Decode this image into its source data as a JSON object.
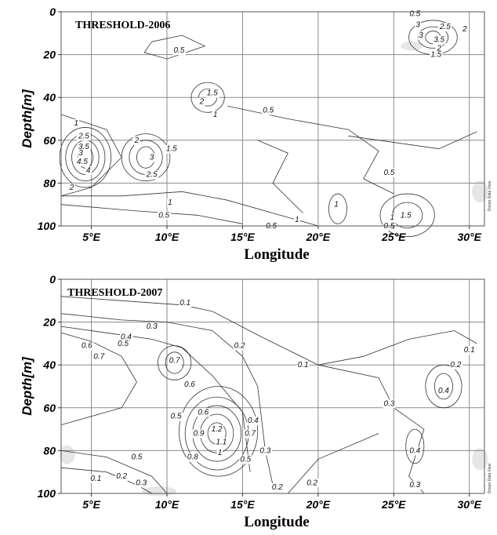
{
  "chart_data": [
    {
      "type": "contour",
      "title": "THRESHOLD-2006",
      "xlabel": "Longitude",
      "ylabel": "Depth[m]",
      "x_ticks": [
        "5°E",
        "10°E",
        "15°E",
        "20°E",
        "25°E",
        "30°E"
      ],
      "x_tick_values": [
        5,
        10,
        15,
        20,
        25,
        30
      ],
      "y_ticks": [
        "0",
        "20",
        "40",
        "60",
        "80",
        "100"
      ],
      "y_tick_values": [
        0,
        20,
        40,
        60,
        80,
        100
      ],
      "xlim": [
        3,
        31
      ],
      "ylim": [
        100,
        0
      ],
      "grid": true,
      "credit": "Ocean Data View",
      "contour_labels": [
        {
          "text": "0.5",
          "lon": 26.4,
          "depth": 1
        },
        {
          "text": "3",
          "lon": 26.6,
          "depth": 6
        },
        {
          "text": "2.5",
          "lon": 28.4,
          "depth": 7
        },
        {
          "text": "2",
          "lon": 29.7,
          "depth": 8
        },
        {
          "text": "3",
          "lon": 26.8,
          "depth": 11
        },
        {
          "text": "3.5",
          "lon": 28.0,
          "depth": 13
        },
        {
          "text": "2",
          "lon": 28.0,
          "depth": 17
        },
        {
          "text": "1.5",
          "lon": 27.8,
          "depth": 20
        },
        {
          "text": "0.5",
          "lon": 10.8,
          "depth": 18
        },
        {
          "text": "1.5",
          "lon": 13.0,
          "depth": 38
        },
        {
          "text": "2",
          "lon": 12.3,
          "depth": 42
        },
        {
          "text": "1",
          "lon": 13.2,
          "depth": 48
        },
        {
          "text": "0.5",
          "lon": 16.7,
          "depth": 46
        },
        {
          "text": "1",
          "lon": 4.0,
          "depth": 52
        },
        {
          "text": "2.5",
          "lon": 4.5,
          "depth": 58
        },
        {
          "text": "2",
          "lon": 8.0,
          "depth": 60
        },
        {
          "text": "3.5",
          "lon": 4.5,
          "depth": 63
        },
        {
          "text": "3",
          "lon": 4.3,
          "depth": 66
        },
        {
          "text": "4.5",
          "lon": 4.4,
          "depth": 70
        },
        {
          "text": "4",
          "lon": 4.8,
          "depth": 74
        },
        {
          "text": "3",
          "lon": 9.0,
          "depth": 68
        },
        {
          "text": "1.5",
          "lon": 10.3,
          "depth": 64
        },
        {
          "text": "2.5",
          "lon": 9.0,
          "depth": 76
        },
        {
          "text": "2",
          "lon": 3.7,
          "depth": 82
        },
        {
          "text": "0.5",
          "lon": 24.7,
          "depth": 75
        },
        {
          "text": "1",
          "lon": 10.2,
          "depth": 89
        },
        {
          "text": "0.5",
          "lon": 9.8,
          "depth": 95
        },
        {
          "text": "1",
          "lon": 18.6,
          "depth": 97
        },
        {
          "text": "0.5",
          "lon": 16.9,
          "depth": 100
        },
        {
          "text": "1",
          "lon": 21.2,
          "depth": 90
        },
        {
          "text": "1",
          "lon": 24.9,
          "depth": 96
        },
        {
          "text": "1.5",
          "lon": 25.8,
          "depth": 95
        },
        {
          "text": "0.5",
          "lon": 24.7,
          "depth": 100
        }
      ]
    },
    {
      "type": "contour",
      "title": "THRESHOLD-2007",
      "xlabel": "Longitude",
      "ylabel": "Depth[m]",
      "x_ticks": [
        "5°E",
        "10°E",
        "15°E",
        "20°E",
        "25°E",
        "30°E"
      ],
      "x_tick_values": [
        5,
        10,
        15,
        20,
        25,
        30
      ],
      "y_ticks": [
        "0",
        "20",
        "40",
        "60",
        "80",
        "100"
      ],
      "y_tick_values": [
        0,
        20,
        40,
        60,
        80,
        100
      ],
      "xlim": [
        3,
        31
      ],
      "ylim": [
        100,
        0
      ],
      "grid": true,
      "credit": "Ocean Data View",
      "contour_labels": [
        {
          "text": "0.1",
          "lon": 11.2,
          "depth": 11
        },
        {
          "text": "0.3",
          "lon": 9.0,
          "depth": 22
        },
        {
          "text": "0.4",
          "lon": 7.3,
          "depth": 27
        },
        {
          "text": "0.5",
          "lon": 7.1,
          "depth": 30
        },
        {
          "text": "0.6",
          "lon": 4.7,
          "depth": 31
        },
        {
          "text": "0.7",
          "lon": 5.5,
          "depth": 36
        },
        {
          "text": "0.2",
          "lon": 14.8,
          "depth": 31
        },
        {
          "text": "0.1",
          "lon": 19.0,
          "depth": 40
        },
        {
          "text": "0.7",
          "lon": 10.5,
          "depth": 38
        },
        {
          "text": "0.6",
          "lon": 11.5,
          "depth": 49
        },
        {
          "text": "0.5",
          "lon": 10.6,
          "depth": 64
        },
        {
          "text": "0.6",
          "lon": 12.4,
          "depth": 62
        },
        {
          "text": "0.9",
          "lon": 12.1,
          "depth": 72
        },
        {
          "text": "1.2",
          "lon": 13.3,
          "depth": 70
        },
        {
          "text": "1.1",
          "lon": 13.6,
          "depth": 76
        },
        {
          "text": "1",
          "lon": 13.5,
          "depth": 81
        },
        {
          "text": "0.8",
          "lon": 11.7,
          "depth": 83
        },
        {
          "text": "0.4",
          "lon": 15.7,
          "depth": 66
        },
        {
          "text": "0.7",
          "lon": 15.5,
          "depth": 72
        },
        {
          "text": "0.5",
          "lon": 15.2,
          "depth": 84
        },
        {
          "text": "0.3",
          "lon": 16.5,
          "depth": 80
        },
        {
          "text": "0.5",
          "lon": 8.0,
          "depth": 83
        },
        {
          "text": "0.1",
          "lon": 5.3,
          "depth": 93
        },
        {
          "text": "0.2",
          "lon": 7.0,
          "depth": 92
        },
        {
          "text": "0.3",
          "lon": 8.3,
          "depth": 95
        },
        {
          "text": "0.2",
          "lon": 17.3,
          "depth": 97
        },
        {
          "text": "0.2",
          "lon": 19.6,
          "depth": 95
        },
        {
          "text": "0.1",
          "lon": 30.0,
          "depth": 33
        },
        {
          "text": "0.2",
          "lon": 29.1,
          "depth": 40
        },
        {
          "text": "0.3",
          "lon": 24.7,
          "depth": 58
        },
        {
          "text": "0.4",
          "lon": 28.3,
          "depth": 52
        },
        {
          "text": "0.4",
          "lon": 26.4,
          "depth": 80
        },
        {
          "text": "0.3",
          "lon": 26.4,
          "depth": 96
        }
      ]
    }
  ]
}
